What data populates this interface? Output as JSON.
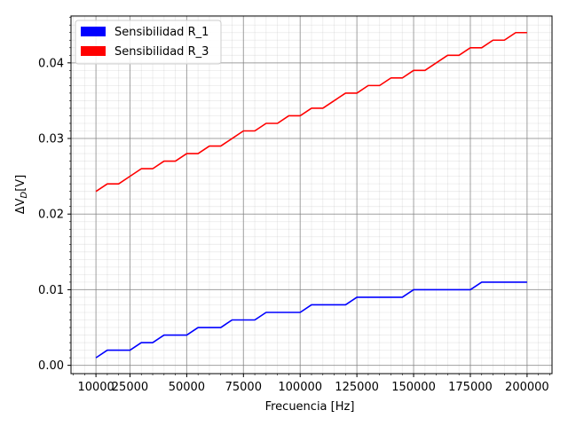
{
  "chart_data": {
    "type": "line",
    "xlabel": "Frecuencia [Hz]",
    "ylabel_base": "ΔV",
    "ylabel_sub": "D",
    "ylabel_unit": "[V]",
    "xlim": [
      -1000,
      211000
    ],
    "ylim": [
      -0.0011,
      0.0462
    ],
    "x_ticks": [
      10000,
      25000,
      50000,
      75000,
      100000,
      125000,
      150000,
      175000,
      200000
    ],
    "x_tick_labels": [
      "10000",
      "25000",
      "50000",
      "75000",
      "100000",
      "125000",
      "150000",
      "175000",
      "200000"
    ],
    "y_ticks": [
      0.0,
      0.01,
      0.02,
      0.03,
      0.04
    ],
    "y_tick_labels": [
      "0.00",
      "0.01",
      "0.02",
      "0.03",
      "0.04"
    ],
    "grid": "major and minor",
    "legend_position": "top-left",
    "x": [
      10000,
      15000,
      20000,
      25000,
      30000,
      35000,
      40000,
      45000,
      50000,
      55000,
      60000,
      65000,
      70000,
      75000,
      80000,
      85000,
      90000,
      95000,
      100000,
      105000,
      110000,
      115000,
      120000,
      125000,
      130000,
      135000,
      140000,
      145000,
      150000,
      155000,
      160000,
      165000,
      170000,
      175000,
      180000,
      185000,
      190000,
      195000,
      200000
    ],
    "series": [
      {
        "name": "Sensibilidad R_1",
        "color": "#0000ff",
        "values": [
          0.001,
          0.002,
          0.002,
          0.002,
          0.003,
          0.003,
          0.004,
          0.004,
          0.004,
          0.005,
          0.005,
          0.005,
          0.006,
          0.006,
          0.006,
          0.007,
          0.007,
          0.007,
          0.007,
          0.008,
          0.008,
          0.008,
          0.008,
          0.009,
          0.009,
          0.009,
          0.009,
          0.009,
          0.01,
          0.01,
          0.01,
          0.01,
          0.01,
          0.01,
          0.011,
          0.011,
          0.011,
          0.011,
          0.011
        ]
      },
      {
        "name": "Sensibilidad R_3",
        "color": "#ff0000",
        "values": [
          0.023,
          0.024,
          0.024,
          0.025,
          0.026,
          0.026,
          0.027,
          0.027,
          0.028,
          0.028,
          0.029,
          0.029,
          0.03,
          0.031,
          0.031,
          0.032,
          0.032,
          0.033,
          0.033,
          0.034,
          0.034,
          0.035,
          0.036,
          0.036,
          0.037,
          0.037,
          0.038,
          0.038,
          0.039,
          0.039,
          0.04,
          0.041,
          0.041,
          0.042,
          0.042,
          0.043,
          0.043,
          0.044,
          0.044
        ]
      }
    ]
  }
}
